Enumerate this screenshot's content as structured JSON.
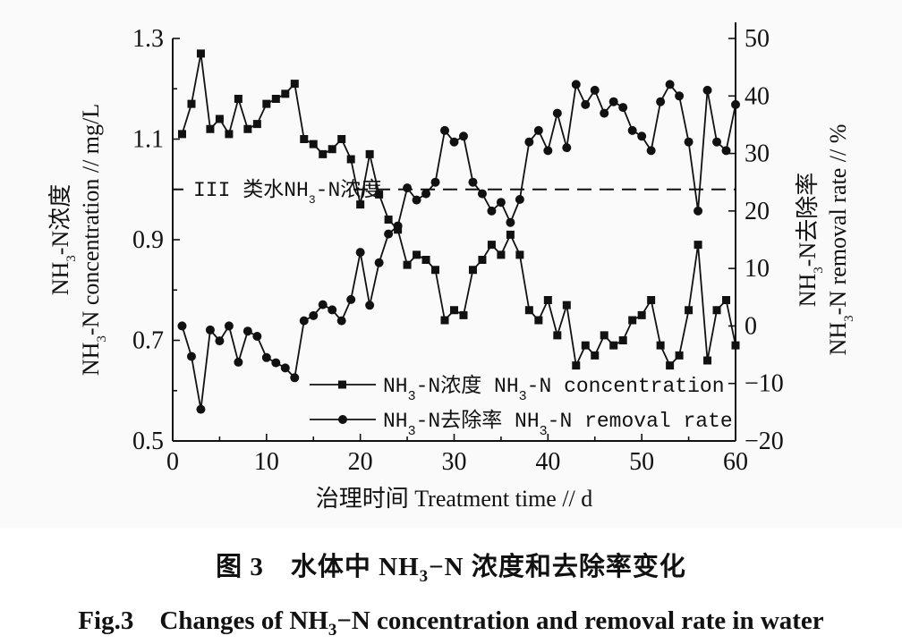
{
  "chart_data": {
    "type": "line",
    "x_label": "治理时间 Treatment time // d",
    "y_left_label_parts": [
      "NH",
      "3",
      "-N浓度",
      "NH",
      "3",
      "-N concentration // mg/L"
    ],
    "y_right_label_parts": [
      "NH",
      "3",
      "-N去除率",
      "NH",
      "3",
      "-N removal rate // %"
    ],
    "x_range": [
      0,
      60
    ],
    "x_ticks": [
      "0",
      "10",
      "20",
      "30",
      "40",
      "50",
      "60"
    ],
    "y_left_range": [
      0.5,
      1.3
    ],
    "y_left_ticks": [
      "0.5",
      "0.7",
      "0.9",
      "1.1",
      "1.3"
    ],
    "y_right_range": [
      -20,
      50
    ],
    "y_right_ticks": [
      "−20",
      "−10",
      "0",
      "10",
      "20",
      "30",
      "40",
      "50"
    ],
    "reference_line": {
      "y": 1.0,
      "label_parts": [
        "III 类水NH",
        "3",
        "-N浓度"
      ]
    },
    "series": [
      {
        "name_parts": [
          "NH",
          "3",
          "-N浓度 NH",
          "3",
          "-N concentration"
        ],
        "marker": "square",
        "axis": "left",
        "x": [
          1,
          2,
          3,
          4,
          5,
          6,
          7,
          8,
          9,
          10,
          11,
          12,
          13,
          14,
          15,
          16,
          17,
          18,
          19,
          20,
          21,
          22,
          23,
          24,
          25,
          26,
          27,
          28,
          29,
          30,
          31,
          32,
          33,
          34,
          35,
          36,
          37,
          38,
          39,
          40,
          41,
          42,
          43,
          44,
          45,
          46,
          47,
          48,
          49,
          50,
          51,
          52,
          53,
          54,
          55,
          56,
          57,
          58,
          59,
          60
        ],
        "values": [
          1.11,
          1.17,
          1.27,
          1.12,
          1.14,
          1.11,
          1.18,
          1.12,
          1.13,
          1.17,
          1.18,
          1.19,
          1.21,
          1.1,
          1.09,
          1.07,
          1.08,
          1.1,
          1.06,
          0.97,
          1.07,
          0.99,
          0.94,
          0.92,
          0.85,
          0.87,
          0.86,
          0.84,
          0.74,
          0.76,
          0.75,
          0.84,
          0.86,
          0.89,
          0.87,
          0.91,
          0.87,
          0.76,
          0.74,
          0.78,
          0.71,
          0.77,
          0.65,
          0.69,
          0.67,
          0.71,
          0.69,
          0.7,
          0.74,
          0.75,
          0.78,
          0.69,
          0.65,
          0.67,
          0.76,
          0.89,
          0.66,
          0.76,
          0.78,
          0.69
        ]
      },
      {
        "name_parts": [
          "NH",
          "3",
          "-N去除率 NH",
          "3",
          "-N removal rate"
        ],
        "marker": "circle",
        "axis": "right",
        "x": [
          1,
          2,
          3,
          4,
          5,
          6,
          7,
          8,
          9,
          10,
          11,
          12,
          13,
          14,
          15,
          16,
          17,
          18,
          19,
          20,
          21,
          22,
          23,
          24,
          25,
          26,
          27,
          28,
          29,
          30,
          31,
          32,
          33,
          34,
          35,
          36,
          37,
          38,
          39,
          40,
          41,
          42,
          43,
          44,
          45,
          46,
          47,
          48,
          49,
          50,
          51,
          52,
          53,
          54,
          55,
          56,
          57,
          58,
          59,
          60
        ],
        "values": [
          0.0,
          -5.3,
          -14.5,
          -0.7,
          -2.6,
          0.0,
          -6.3,
          -0.9,
          -1.8,
          -5.5,
          -6.4,
          -7.3,
          -9.0,
          0.9,
          1.8,
          3.7,
          2.8,
          0.9,
          4.6,
          12.8,
          3.6,
          11.0,
          16.0,
          17.4,
          24.0,
          21.9,
          23.0,
          25.0,
          34.0,
          32.0,
          33.0,
          25.0,
          23.0,
          20.0,
          21.5,
          18.0,
          22.0,
          32.0,
          34.0,
          30.5,
          37.0,
          31.0,
          42.0,
          38.5,
          41.0,
          37.0,
          39.0,
          38.0,
          34.0,
          33.0,
          30.5,
          39.0,
          42.0,
          40.0,
          32.0,
          20.0,
          41.0,
          32.0,
          30.5,
          38.5
        ]
      }
    ]
  },
  "caption": {
    "zh_parts": [
      "图 3　水体中 NH",
      "3",
      "−N 浓度和去除率变化"
    ],
    "en_parts": [
      "Fig.3　Changes of NH",
      "3",
      "−N concentration and removal rate in water"
    ]
  }
}
